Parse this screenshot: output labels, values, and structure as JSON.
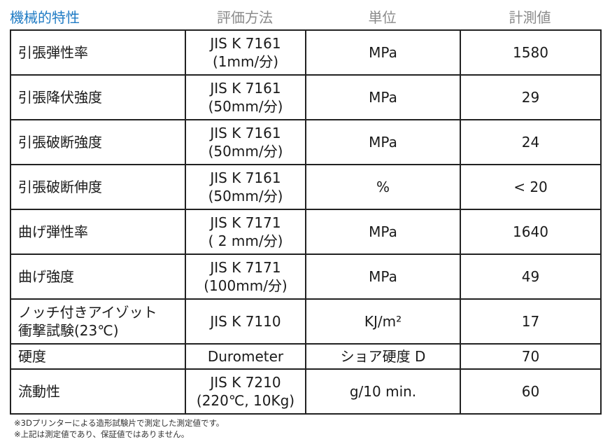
{
  "header": {
    "columns": [
      "機械的特性",
      "評価方法",
      "単位",
      "計測値"
    ]
  },
  "table": {
    "rows": [
      [
        [
          "引張弾性率"
        ],
        [
          "JIS K 7161",
          "(1mm/分)"
        ],
        [
          "MPa"
        ],
        [
          1580
        ]
      ],
      [
        [
          "引張降伏強度"
        ],
        [
          "JIS K 7161",
          "(50mm/分)"
        ],
        [
          "MPa"
        ],
        [
          29
        ]
      ],
      [
        [
          "引張破断強度"
        ],
        [
          "JIS K 7161",
          "(50mm/分)"
        ],
        [
          "MPa"
        ],
        [
          24
        ]
      ],
      [
        [
          "引張破断伸度"
        ],
        [
          "JIS K 7161",
          "(50mm/分)"
        ],
        [
          "%"
        ],
        [
          "< 20"
        ]
      ],
      [
        [
          "曲げ弾性率"
        ],
        [
          "JIS K 7171",
          "( 2 mm/分)"
        ],
        [
          "MPa"
        ],
        [
          1640
        ]
      ],
      [
        [
          "曲げ強度"
        ],
        [
          "JIS K 7171",
          "(100mm/分)"
        ],
        [
          "MPa"
        ],
        [
          49
        ]
      ],
      [
        [
          "ノッチ付きアイゾット",
          "衝撃試験(23℃)"
        ],
        [
          "JIS K 7110"
        ],
        [
          "KJ/m²"
        ],
        [
          17
        ]
      ],
      [
        [
          "硬度"
        ],
        [
          "Durometer"
        ],
        [
          "ショア硬度 D"
        ],
        [
          70
        ]
      ],
      [
        [
          "流動性"
        ],
        [
          "JIS K 7210",
          "(220℃, 10Kg)"
        ],
        [
          "g/10 min."
        ],
        [
          60
        ]
      ]
    ]
  },
  "notes": [
    "※3Dプリンターによる造形試験片で測定した測定値です。",
    "※上記は測定値であり、保証値ではありません。"
  ]
}
